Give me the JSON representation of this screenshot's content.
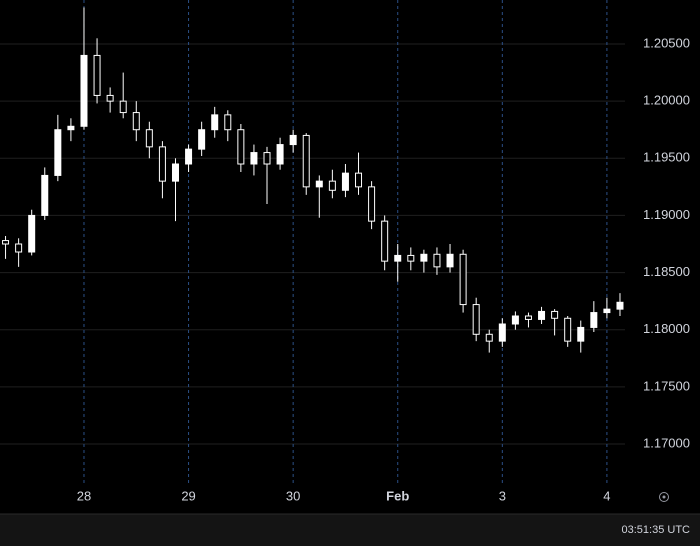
{
  "chart_data": {
    "type": "candlestick",
    "x": [
      -0.75,
      -0.625,
      -0.5,
      -0.375,
      -0.25,
      -0.125,
      0,
      0.125,
      0.25,
      0.375,
      0.5,
      0.625,
      0.75,
      0.875,
      1,
      1.125,
      1.25,
      1.375,
      1.5,
      1.625,
      1.75,
      1.875,
      2,
      2.125,
      2.25,
      2.375,
      2.5,
      2.625,
      2.75,
      2.875,
      3,
      3.125,
      3.25,
      3.375,
      3.5,
      3.625,
      3.75,
      3.875,
      4,
      4.125,
      4.25,
      4.375,
      4.5,
      4.625,
      4.75,
      4.875,
      5,
      5.125
    ],
    "open": [
      1.1878,
      1.1875,
      1.1868,
      1.19,
      1.1935,
      1.1975,
      1.1978,
      1.204,
      1.2005,
      1.2,
      1.199,
      1.1975,
      1.196,
      1.193,
      1.1945,
      1.1958,
      1.1975,
      1.1988,
      1.1975,
      1.1945,
      1.1955,
      1.1945,
      1.1962,
      1.197,
      1.1925,
      1.193,
      1.1922,
      1.1937,
      1.1925,
      1.1895,
      1.186,
      1.1865,
      1.186,
      1.1866,
      1.1855,
      1.1866,
      1.1822,
      1.1796,
      1.179,
      1.1805,
      1.1812,
      1.1809,
      1.1816,
      1.181,
      1.179,
      1.1802,
      1.1815,
      1.1818
    ],
    "high": [
      1.1882,
      1.188,
      1.1905,
      1.1942,
      1.1988,
      1.1985,
      1.2082,
      1.2055,
      1.2012,
      1.2025,
      1.2,
      1.1982,
      1.1965,
      1.195,
      1.1962,
      1.1982,
      1.1995,
      1.1992,
      1.198,
      1.1962,
      1.196,
      1.1968,
      1.1975,
      1.1972,
      1.1935,
      1.194,
      1.1945,
      1.1955,
      1.193,
      1.19,
      1.1875,
      1.1872,
      1.187,
      1.1872,
      1.1875,
      1.187,
      1.1828,
      1.18,
      1.181,
      1.1816,
      1.1815,
      1.182,
      1.1818,
      1.1812,
      1.1808,
      1.1825,
      1.1828,
      1.1832
    ],
    "low": [
      1.1862,
      1.1855,
      1.1865,
      1.1896,
      1.193,
      1.1965,
      1.1975,
      1.1998,
      1.199,
      1.1985,
      1.1965,
      1.195,
      1.1915,
      1.1895,
      1.1938,
      1.1952,
      1.1968,
      1.1965,
      1.1938,
      1.1935,
      1.191,
      1.194,
      1.1955,
      1.1918,
      1.1898,
      1.1915,
      1.1916,
      1.1918,
      1.1888,
      1.1852,
      1.1842,
      1.1852,
      1.185,
      1.1848,
      1.185,
      1.1815,
      1.179,
      1.178,
      1.1785,
      1.18,
      1.1802,
      1.1805,
      1.1795,
      1.1785,
      1.178,
      1.1798,
      1.181,
      1.1812
    ],
    "close": [
      1.1875,
      1.1868,
      1.19,
      1.1935,
      1.1975,
      1.1978,
      1.204,
      1.2005,
      1.2,
      1.199,
      1.1975,
      1.196,
      1.193,
      1.1945,
      1.1958,
      1.1975,
      1.1988,
      1.1975,
      1.1945,
      1.1955,
      1.1945,
      1.1962,
      1.197,
      1.1925,
      1.193,
      1.1922,
      1.1937,
      1.1925,
      1.1895,
      1.186,
      1.1865,
      1.186,
      1.1866,
      1.1855,
      1.1866,
      1.1822,
      1.1796,
      1.179,
      1.1805,
      1.1812,
      1.1809,
      1.1816,
      1.181,
      1.179,
      1.1802,
      1.1815,
      1.1818,
      1.1824
    ],
    "color": "#ffffff",
    "xlim": [
      -0.803,
      5.173
    ],
    "xticks": [
      {
        "value": 0,
        "label": "28"
      },
      {
        "value": 1,
        "label": "29"
      },
      {
        "value": 2,
        "label": "30"
      },
      {
        "value": 3,
        "label": "Feb"
      },
      {
        "value": 4,
        "label": "3"
      },
      {
        "value": 5,
        "label": "4"
      }
    ],
    "ylim": [
      1.1665,
      1.20885
    ],
    "yticks": [
      {
        "value": 1.17,
        "label": "1.17000"
      },
      {
        "value": 1.175,
        "label": "1.17500"
      },
      {
        "value": 1.18,
        "label": "1.18000"
      },
      {
        "value": 1.185,
        "label": "1.18500"
      },
      {
        "value": 1.19,
        "label": "1.19000"
      },
      {
        "value": 1.195,
        "label": "1.19500"
      },
      {
        "value": 1.2,
        "label": "1.20000"
      },
      {
        "value": 1.205,
        "label": "1.20500"
      }
    ],
    "grid": true,
    "clock": "03:51:35 UTC"
  }
}
